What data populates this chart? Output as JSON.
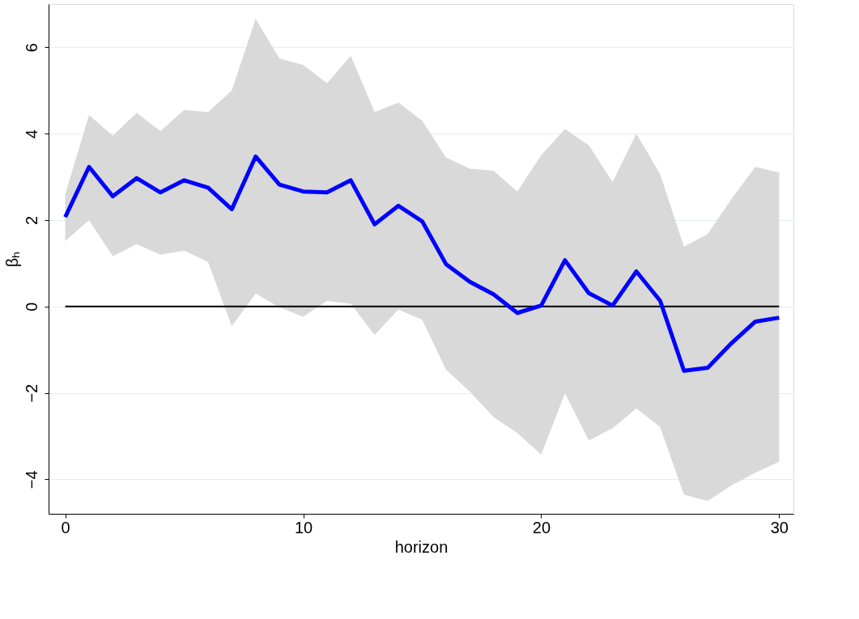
{
  "chart_data": {
    "type": "line",
    "xlabel": "horizon",
    "ylabel": "βₕ",
    "x": [
      0,
      1,
      2,
      3,
      4,
      5,
      6,
      7,
      8,
      9,
      10,
      11,
      12,
      13,
      14,
      15,
      16,
      17,
      18,
      19,
      20,
      21,
      22,
      23,
      24,
      25,
      26,
      27,
      28,
      29,
      30
    ],
    "series": [
      {
        "color": "#0000ff",
        "values": [
          2.07,
          3.23,
          2.55,
          2.97,
          2.64,
          2.92,
          2.75,
          2.25,
          3.47,
          2.82,
          2.66,
          2.64,
          2.92,
          1.9,
          2.33,
          1.97,
          0.98,
          0.57,
          0.28,
          -0.15,
          0.02,
          1.07,
          0.31,
          0.02,
          0.81,
          0.13,
          -1.49,
          -1.42,
          -0.85,
          -0.35,
          -0.26
        ],
        "upper": [
          2.6,
          4.43,
          3.95,
          4.48,
          4.06,
          4.55,
          4.5,
          5.0,
          6.66,
          5.74,
          5.59,
          5.17,
          5.8,
          4.5,
          4.72,
          4.3,
          3.45,
          3.19,
          3.14,
          2.66,
          3.5,
          4.11,
          3.73,
          2.88,
          4.0,
          3.06,
          1.38,
          1.68,
          2.49,
          3.23,
          3.1
        ],
        "lower": [
          1.51,
          2.0,
          1.16,
          1.44,
          1.2,
          1.29,
          1.03,
          -0.46,
          0.3,
          -0.02,
          -0.24,
          0.13,
          0.06,
          -0.66,
          -0.07,
          -0.31,
          -1.46,
          -1.97,
          -2.56,
          -2.93,
          -3.43,
          -2.01,
          -3.1,
          -2.82,
          -2.36,
          -2.79,
          -4.36,
          -4.5,
          -4.14,
          -3.85,
          -3.59
        ]
      }
    ],
    "xlim": [
      -0.7,
      30.6
    ],
    "ylim": [
      -4.8,
      7.0
    ],
    "xticks": [
      0,
      10,
      20,
      30
    ],
    "yticks": [
      -4,
      -2,
      0,
      2,
      4,
      6
    ],
    "grid": "y",
    "line_style": "solid",
    "marker": "none",
    "ref_lines": [
      {
        "axis": "y",
        "value": 0,
        "color": "#000000"
      }
    ]
  }
}
